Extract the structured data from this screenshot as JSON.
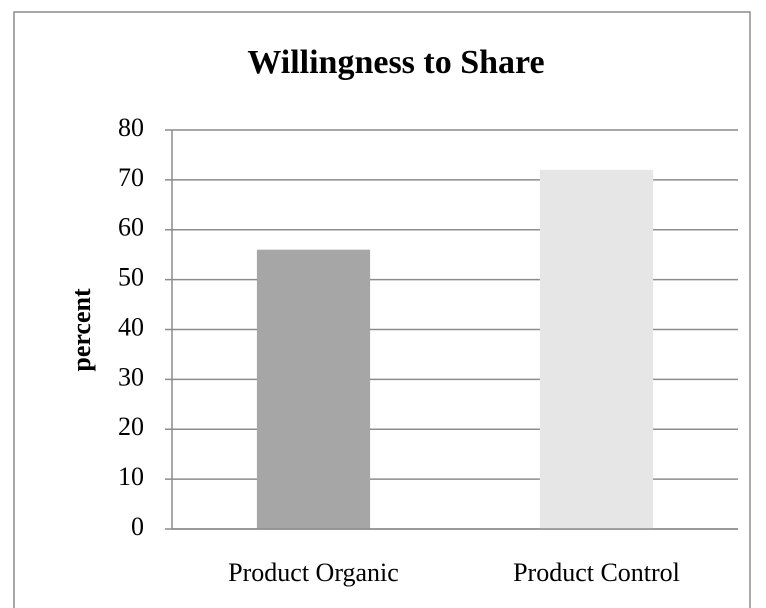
{
  "chart_data": {
    "type": "bar",
    "title": "Willingness to Share",
    "y_label": "percent",
    "categories": [
      "Product Organic",
      "Product Control"
    ],
    "values": [
      56,
      72
    ],
    "colors": [
      "#a6a6a6",
      "#e6e6e6"
    ],
    "ylim": [
      0,
      80
    ],
    "yticks": [
      0,
      10,
      20,
      30,
      40,
      50,
      60,
      70,
      80
    ],
    "grid": true
  }
}
